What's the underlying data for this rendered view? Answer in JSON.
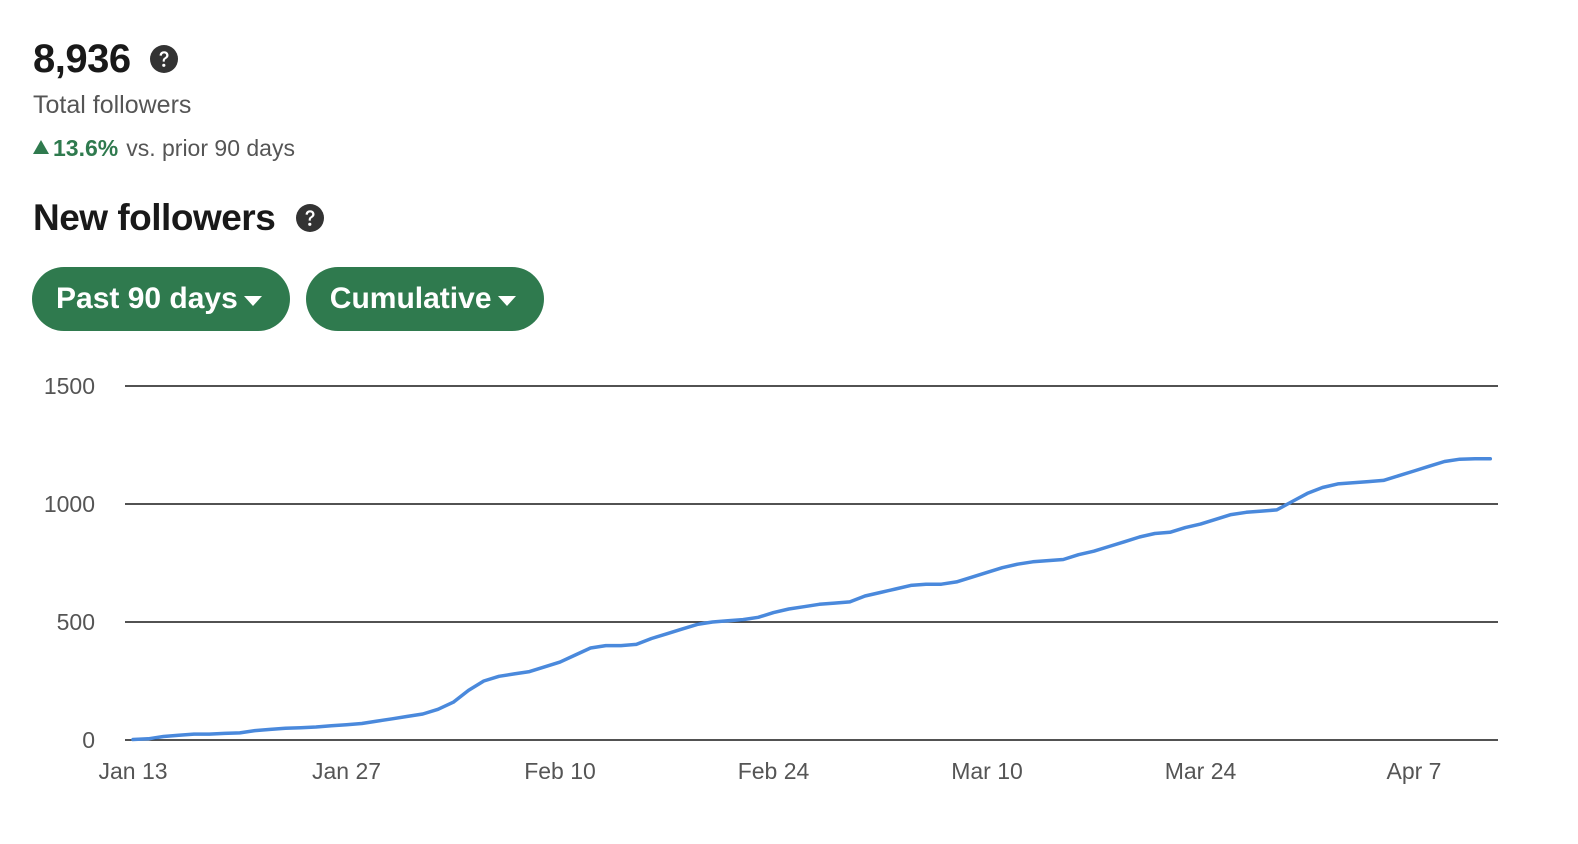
{
  "summary": {
    "total_value": "8,936",
    "total_label": "Total followers",
    "change_value": "13.6%",
    "change_label": "vs. prior 90 days",
    "help_icon": "question-circle-icon"
  },
  "section": {
    "title": "New followers",
    "help_icon": "question-circle-icon"
  },
  "filters": {
    "range_label": "Past 90 days",
    "mode_label": "Cumulative",
    "caret_icon": "caret-down-icon"
  },
  "colors": {
    "accent": "#2f7a4e",
    "line": "#4a89dc",
    "gridline": "#191919",
    "muted_text": "#555555"
  },
  "chart_data": {
    "type": "line",
    "title": "",
    "xlabel": "",
    "ylabel": "",
    "ylim": [
      0,
      1500
    ],
    "yticks": [
      "0",
      "500",
      "1000",
      "1500"
    ],
    "xticks": [
      "Jan 13",
      "Jan 27",
      "Feb 10",
      "Feb 24",
      "Mar 10",
      "Mar 24",
      "Apr 7"
    ],
    "x_start": "Jan 13",
    "grid": true,
    "series": [
      {
        "name": "",
        "values": [
          2,
          5,
          15,
          20,
          25,
          25,
          28,
          30,
          40,
          45,
          50,
          52,
          55,
          60,
          65,
          70,
          80,
          90,
          100,
          110,
          130,
          160,
          210,
          250,
          270,
          280,
          290,
          310,
          330,
          360,
          390,
          400,
          400,
          405,
          430,
          450,
          470,
          490,
          500,
          505,
          510,
          520,
          540,
          555,
          565,
          575,
          580,
          585,
          610,
          625,
          640,
          655,
          660,
          660,
          670,
          690,
          710,
          730,
          745,
          755,
          760,
          765,
          785,
          800,
          820,
          840,
          860,
          875,
          880,
          900,
          915,
          935,
          955,
          965,
          970,
          975,
          1010,
          1045,
          1070,
          1085,
          1090,
          1095,
          1100,
          1120,
          1140,
          1160,
          1180,
          1190,
          1192,
          1192
        ]
      }
    ]
  }
}
